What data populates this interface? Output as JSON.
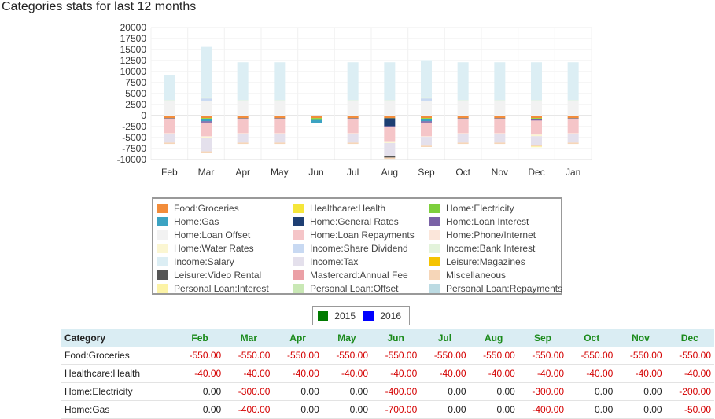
{
  "page": {
    "title": "Categories stats for last 12 months",
    "year_legend": [
      {
        "label": "2015",
        "color": "#007a00"
      },
      {
        "label": "2016",
        "color": "#0000ff"
      }
    ]
  },
  "chart_data": {
    "type": "bar",
    "stacked": true,
    "title": "",
    "xlabel": "",
    "ylabel": "",
    "ylim": [
      -10000,
      20000
    ],
    "yticks": [
      20000,
      17500,
      15000,
      12500,
      10000,
      7500,
      5000,
      2500,
      0,
      -2500,
      -5000,
      -7500,
      -10000
    ],
    "grid": true,
    "legend_position": "bottom",
    "categories": [
      "Feb",
      "Mar",
      "Apr",
      "May",
      "Jun",
      "Jul",
      "Aug",
      "Sep",
      "Oct",
      "Nov",
      "Dec",
      "Jan"
    ],
    "series": [
      {
        "name": "Food:Groceries",
        "color": "#f28c3a",
        "values": [
          -550,
          -550,
          -550,
          -550,
          -550,
          -550,
          -550,
          -550,
          -550,
          -550,
          -550,
          -550
        ]
      },
      {
        "name": "Healthcare:Health",
        "color": "#f5e63a",
        "values": [
          -40,
          -40,
          -40,
          -40,
          -40,
          -40,
          -40,
          -40,
          -40,
          -40,
          -40,
          -40
        ]
      },
      {
        "name": "Home:Electricity",
        "color": "#7dcf3c",
        "values": [
          0,
          -300,
          0,
          0,
          -400,
          0,
          0,
          -300,
          0,
          0,
          -200,
          0
        ]
      },
      {
        "name": "Home:Gas",
        "color": "#3ca3c2",
        "values": [
          0,
          -400,
          0,
          0,
          -700,
          0,
          0,
          -400,
          0,
          0,
          -50,
          0
        ]
      },
      {
        "name": "Home:General Rates",
        "color": "#1e3f73",
        "values": [
          0,
          0,
          0,
          0,
          0,
          0,
          -1800,
          0,
          0,
          0,
          0,
          0
        ]
      },
      {
        "name": "Home:Loan Interest",
        "color": "#7a62a6",
        "values": [
          -300,
          -300,
          -300,
          -300,
          0,
          -300,
          -300,
          -300,
          -300,
          -300,
          -300,
          -300
        ]
      },
      {
        "name": "Home:Loan Offset",
        "color": "#f2f2f2",
        "values": [
          3400,
          3400,
          3400,
          3400,
          0,
          3400,
          3400,
          3400,
          3400,
          3400,
          3400,
          3400
        ]
      },
      {
        "name": "Home:Loan Repayments",
        "color": "#f5c5c8",
        "values": [
          -3100,
          -3100,
          -3100,
          -3100,
          0,
          -3100,
          -3100,
          -3100,
          -3100,
          -3100,
          -3100,
          -3100
        ]
      },
      {
        "name": "Home:Phone/Internet",
        "color": "#fbe6da",
        "values": [
          -150,
          -150,
          -150,
          -150,
          0,
          -150,
          -150,
          -150,
          -150,
          -150,
          -150,
          -150
        ]
      },
      {
        "name": "Home:Water Rates",
        "color": "#fbf6d2",
        "values": [
          0,
          -300,
          0,
          0,
          0,
          0,
          -300,
          0,
          0,
          0,
          -300,
          0
        ]
      },
      {
        "name": "Income:Share Dividend",
        "color": "#c8d9f2",
        "values": [
          0,
          500,
          0,
          0,
          0,
          0,
          0,
          500,
          0,
          0,
          0,
          0
        ]
      },
      {
        "name": "Income:Bank Interest",
        "color": "#e3f3db",
        "values": [
          100,
          100,
          100,
          100,
          0,
          100,
          100,
          100,
          100,
          100,
          100,
          100
        ]
      },
      {
        "name": "Income:Salary",
        "color": "#dceef4",
        "values": [
          5700,
          11600,
          8600,
          8600,
          0,
          8600,
          8600,
          8600,
          8600,
          8600,
          8600,
          8600
        ]
      },
      {
        "name": "Income:Tax",
        "color": "#e4e0ec",
        "values": [
          -2000,
          -3000,
          -2000,
          -2000,
          0,
          -2000,
          -3000,
          -2000,
          -2000,
          -2000,
          -2000,
          -2000
        ]
      },
      {
        "name": "Leisure:Magazines",
        "color": "#f5c300",
        "values": [
          0,
          0,
          0,
          0,
          0,
          0,
          0,
          0,
          0,
          0,
          0,
          0
        ]
      },
      {
        "name": "Leisure:Video Rental",
        "color": "#555555",
        "values": [
          0,
          0,
          0,
          0,
          0,
          0,
          -300,
          0,
          0,
          0,
          0,
          0
        ]
      },
      {
        "name": "Mastercard:Annual Fee",
        "color": "#eba0a6",
        "values": [
          0,
          0,
          0,
          0,
          0,
          0,
          0,
          0,
          0,
          0,
          0,
          0
        ]
      },
      {
        "name": "Miscellaneous",
        "color": "#f6d6b8",
        "values": [
          -300,
          -300,
          -300,
          -300,
          0,
          -300,
          -300,
          -300,
          -300,
          -300,
          -300,
          -300
        ]
      },
      {
        "name": "Personal Loan:Interest",
        "color": "#fcf3a6",
        "values": [
          0,
          0,
          0,
          0,
          0,
          0,
          0,
          0,
          0,
          0,
          -200,
          0
        ]
      },
      {
        "name": "Personal Loan:Offset",
        "color": "#c9e8b5",
        "values": [
          0,
          0,
          0,
          0,
          0,
          0,
          0,
          0,
          0,
          0,
          0,
          0
        ]
      },
      {
        "name": "Personal Loan:Repayments",
        "color": "#bcdbe3",
        "values": [
          0,
          0,
          0,
          0,
          0,
          0,
          0,
          0,
          0,
          0,
          0,
          0
        ]
      }
    ]
  },
  "table": {
    "header_label": "Category",
    "months": [
      "Feb",
      "Mar",
      "Apr",
      "May",
      "Jun",
      "Jul",
      "Aug",
      "Sep",
      "Oct",
      "Nov",
      "Dec"
    ],
    "rows": [
      {
        "category": "Food:Groceries",
        "values": [
          "-550.00",
          "-550.00",
          "-550.00",
          "-550.00",
          "-550.00",
          "-550.00",
          "-550.00",
          "-550.00",
          "-550.00",
          "-550.00",
          "-550.00"
        ]
      },
      {
        "category": "Healthcare:Health",
        "values": [
          "-40.00",
          "-40.00",
          "-40.00",
          "-40.00",
          "-40.00",
          "-40.00",
          "-40.00",
          "-40.00",
          "-40.00",
          "-40.00",
          "-40.00"
        ]
      },
      {
        "category": "Home:Electricity",
        "values": [
          "0.00",
          "-300.00",
          "0.00",
          "0.00",
          "-400.00",
          "0.00",
          "0.00",
          "-300.00",
          "0.00",
          "0.00",
          "-200.00"
        ]
      },
      {
        "category": "Home:Gas",
        "values": [
          "0.00",
          "-400.00",
          "0.00",
          "0.00",
          "-700.00",
          "0.00",
          "0.00",
          "-400.00",
          "0.00",
          "0.00",
          "-50.00"
        ]
      }
    ]
  }
}
